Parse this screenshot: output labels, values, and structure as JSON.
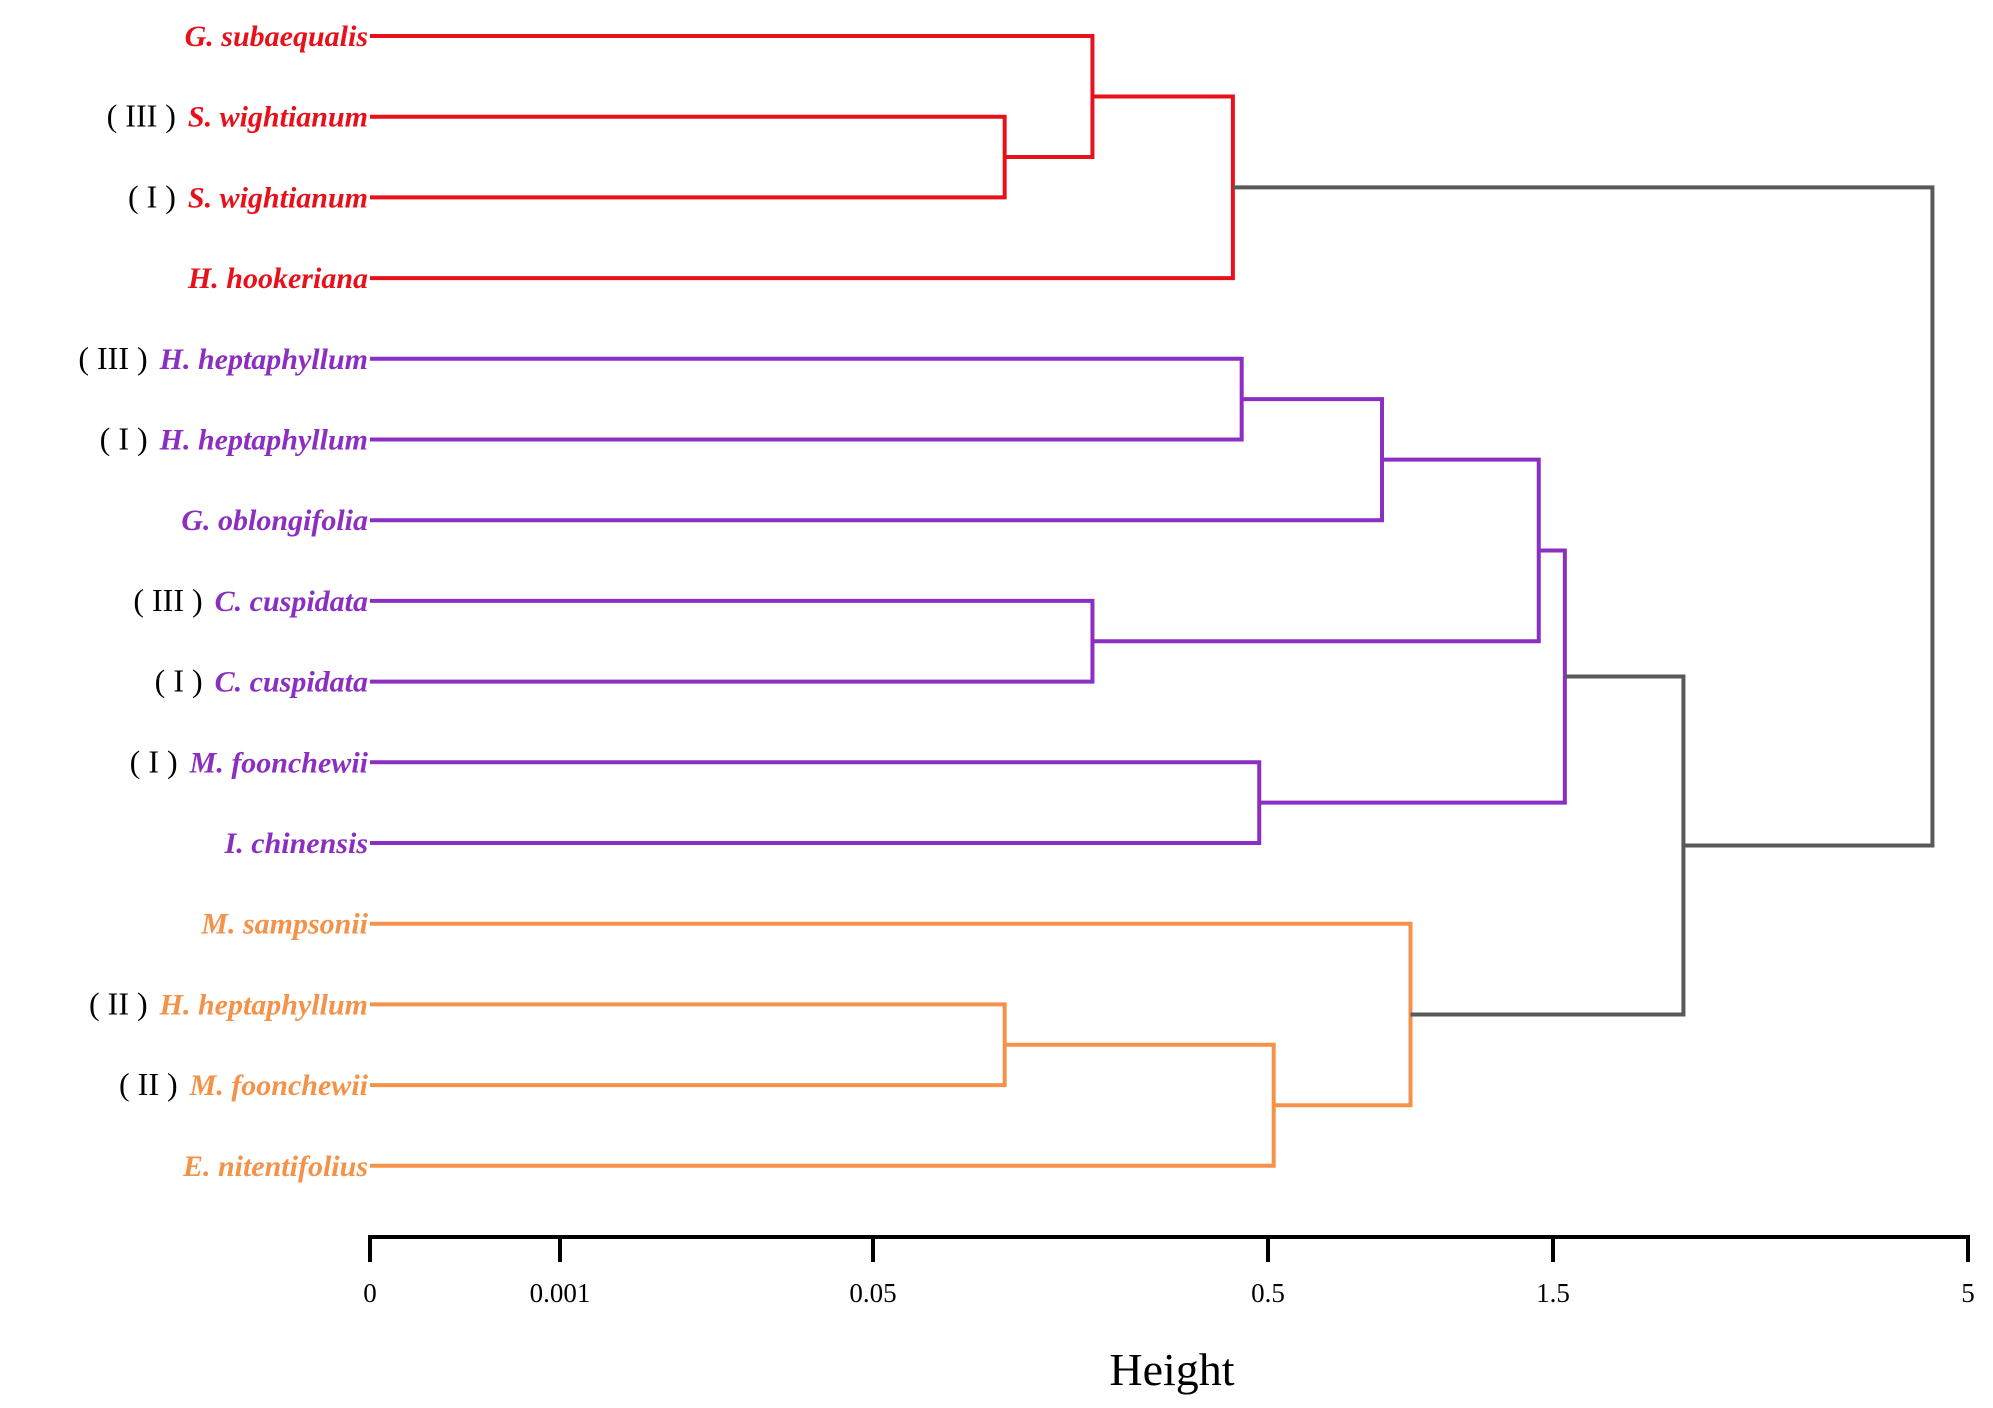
{
  "chart_data": {
    "type": "dendrogram",
    "orientation": "horizontal",
    "xlabel": "Height",
    "x_ticks": [
      "0",
      "0.001",
      "0.05",
      "0.5",
      "1.5",
      "5"
    ],
    "colors": {
      "red": "#e8111b",
      "purple": "#8a2fc2",
      "orange": "#f5924a",
      "gray": "#595959",
      "axis": "#000000"
    },
    "leaves": [
      {
        "id": "L0",
        "prefix": "",
        "name": "G. subaequalis",
        "cluster": "red"
      },
      {
        "id": "L1",
        "prefix": "( III )",
        "name": "S. wightianum",
        "cluster": "red"
      },
      {
        "id": "L2",
        "prefix": "( I )",
        "name": "S. wightianum",
        "cluster": "red"
      },
      {
        "id": "L3",
        "prefix": "",
        "name": "H. hookeriana",
        "cluster": "red"
      },
      {
        "id": "L4",
        "prefix": "( III )",
        "name": "H. heptaphyllum",
        "cluster": "purple"
      },
      {
        "id": "L5",
        "prefix": "( I )",
        "name": "H. heptaphyllum",
        "cluster": "purple"
      },
      {
        "id": "L6",
        "prefix": "",
        "name": "G. oblongifolia",
        "cluster": "purple"
      },
      {
        "id": "L7",
        "prefix": "( III )",
        "name": "C. cuspidata",
        "cluster": "purple"
      },
      {
        "id": "L8",
        "prefix": "( I )",
        "name": "C. cuspidata",
        "cluster": "purple"
      },
      {
        "id": "L9",
        "prefix": "( I )",
        "name": "M. foonchewii",
        "cluster": "purple"
      },
      {
        "id": "L10",
        "prefix": "",
        "name": "I. chinensis",
        "cluster": "purple"
      },
      {
        "id": "L11",
        "prefix": "",
        "name": "M. sampsonii",
        "cluster": "orange"
      },
      {
        "id": "L12",
        "prefix": "( II )",
        "name": "H. heptaphyllum",
        "cluster": "orange"
      },
      {
        "id": "L13",
        "prefix": "( II )",
        "name": "M. foonchewii",
        "cluster": "orange"
      },
      {
        "id": "L14",
        "prefix": "",
        "name": "E. nitentifolius",
        "cluster": "orange"
      }
    ],
    "merges": [
      {
        "id": "N1",
        "children": [
          "L1",
          "L2"
        ],
        "height": 0.2,
        "color": "red"
      },
      {
        "id": "N2",
        "children": [
          "L0",
          "N1"
        ],
        "height": 0.3,
        "color": "red"
      },
      {
        "id": "N3",
        "children": [
          "N2",
          "L3"
        ],
        "height": 0.46,
        "color": "red"
      },
      {
        "id": "N4",
        "children": [
          "L4",
          "L5"
        ],
        "height": 0.47,
        "color": "purple"
      },
      {
        "id": "N5",
        "children": [
          "N4",
          "L6"
        ],
        "height": 0.9,
        "color": "purple"
      },
      {
        "id": "N6",
        "children": [
          "L7",
          "L8"
        ],
        "height": 0.3,
        "color": "purple"
      },
      {
        "id": "N7",
        "children": [
          "N5",
          "N6"
        ],
        "height": 1.45,
        "color": "purple"
      },
      {
        "id": "N8",
        "children": [
          "L9",
          "L10"
        ],
        "height": 0.49,
        "color": "purple"
      },
      {
        "id": "N9",
        "children": [
          "N7",
          "N8"
        ],
        "height": 1.6,
        "color": "purple"
      },
      {
        "id": "N10",
        "children": [
          "L12",
          "L13"
        ],
        "height": 0.2,
        "color": "orange"
      },
      {
        "id": "N11",
        "children": [
          "N10",
          "L14"
        ],
        "height": 0.52,
        "color": "orange"
      },
      {
        "id": "N12",
        "children": [
          "L11",
          "N11"
        ],
        "height": 1.0,
        "color": "orange"
      },
      {
        "id": "N13",
        "children": [
          "N9",
          "N12"
        ],
        "height": 2.6,
        "color": "gray"
      },
      {
        "id": "N14",
        "children": [
          "N3",
          "N13"
        ],
        "height": 4.7,
        "color": "gray"
      }
    ]
  }
}
